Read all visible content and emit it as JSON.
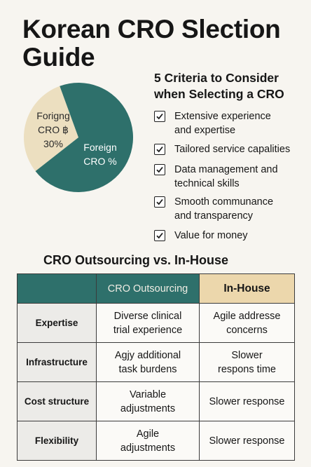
{
  "title": "Korean CRO Slection Guide",
  "pie": {
    "colors": {
      "foreign": "#2e706b",
      "korean": "#ecdfc0"
    },
    "korean_label": "Forigng CRO ฿ 30%",
    "korean_lines": [
      "Forigng",
      "CRO ฿",
      "30%"
    ],
    "foreign_lines": [
      "Foreign",
      "CRO %"
    ],
    "korean_share": 0.3
  },
  "criteria": {
    "title": "5 Criteria to Consider when Selecting a CRO",
    "items": [
      {
        "lines": [
          "Extensive experience",
          "and expertise"
        ],
        "checked": true
      },
      {
        "lines": [
          "Tailored service capalities"
        ],
        "checked": true
      },
      {
        "lines": [
          "Data management and",
          "technical skills"
        ],
        "checked": true
      },
      {
        "lines": [
          "Smooth communance",
          "and transparency"
        ],
        "checked": true
      },
      {
        "lines": [
          "Value for money"
        ],
        "checked": true
      }
    ]
  },
  "comparison": {
    "title": "CRO Outsourcing vs. In-House",
    "headers": [
      "",
      "CRO Outsourcing",
      "In-House"
    ],
    "rows": [
      {
        "label": "Expertise",
        "outsourcing": [
          "Diverse clinical",
          "trial experience"
        ],
        "inhouse": [
          "Agile addresse",
          "concerns"
        ]
      },
      {
        "label": "Infrastructure",
        "outsourcing": [
          "Agjy additional",
          "task burdens"
        ],
        "inhouse": [
          "Slower",
          "respons time"
        ]
      },
      {
        "label": "Cost structure",
        "outsourcing": [
          "Variable",
          "adjustments"
        ],
        "inhouse": [
          "Slower response"
        ]
      },
      {
        "label": "Flexibility",
        "outsourcing": [
          "Agile",
          "adjustments"
        ],
        "inhouse": [
          "Slower response"
        ]
      }
    ]
  }
}
